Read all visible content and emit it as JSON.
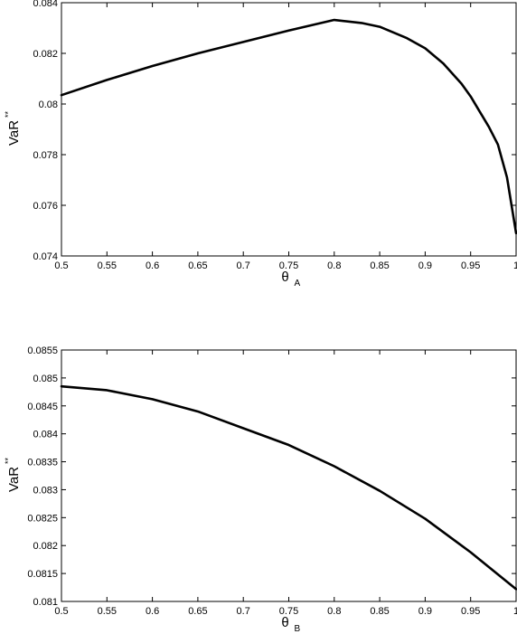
{
  "chart_data": [
    {
      "type": "line",
      "xlabel": "θ",
      "xlabel_sub": "A",
      "ylabel": "VaR",
      "ylabel_sup": "**",
      "xlim": [
        0.5,
        1
      ],
      "ylim": [
        0.074,
        0.084
      ],
      "xticks": [
        "0.5",
        "0.55",
        "0.6",
        "0.65",
        "0.7",
        "0.75",
        "0.8",
        "0.85",
        "0.9",
        "0.95",
        "1"
      ],
      "yticks": [
        "0.074",
        "0.076",
        "0.078",
        "0.08",
        "0.082",
        "0.084"
      ],
      "grid": false,
      "series": [
        {
          "x": [
            0.5,
            0.55,
            0.6,
            0.65,
            0.7,
            0.75,
            0.8,
            0.83,
            0.85,
            0.88,
            0.9,
            0.92,
            0.94,
            0.95,
            0.96,
            0.97,
            0.98,
            0.99,
            1.0
          ],
          "y": [
            0.08035,
            0.08095,
            0.0815,
            0.082,
            0.08245,
            0.0829,
            0.08332,
            0.0832,
            0.08305,
            0.0826,
            0.0822,
            0.0816,
            0.0808,
            0.0803,
            0.0797,
            0.0791,
            0.0784,
            0.0771,
            0.0749
          ]
        }
      ]
    },
    {
      "type": "line",
      "xlabel": "θ",
      "xlabel_sub": "B",
      "ylabel": "VaR",
      "ylabel_sup": "**",
      "xlim": [
        0.5,
        1
      ],
      "ylim": [
        0.081,
        0.0855
      ],
      "xticks": [
        "0.5",
        "0.55",
        "0.6",
        "0.65",
        "0.7",
        "0.75",
        "0.8",
        "0.85",
        "0.9",
        "0.95",
        "1"
      ],
      "yticks": [
        "0.081",
        "0.0815",
        "0.082",
        "0.0825",
        "0.083",
        "0.0835",
        "0.084",
        "0.0845",
        "0.085",
        "0.0855"
      ],
      "grid": false,
      "series": [
        {
          "x": [
            0.5,
            0.55,
            0.6,
            0.65,
            0.7,
            0.75,
            0.8,
            0.85,
            0.9,
            0.95,
            1.0
          ],
          "y": [
            0.08485,
            0.08478,
            0.08462,
            0.0844,
            0.0841,
            0.0838,
            0.08342,
            0.08298,
            0.08248,
            0.08188,
            0.08122
          ]
        }
      ]
    }
  ]
}
